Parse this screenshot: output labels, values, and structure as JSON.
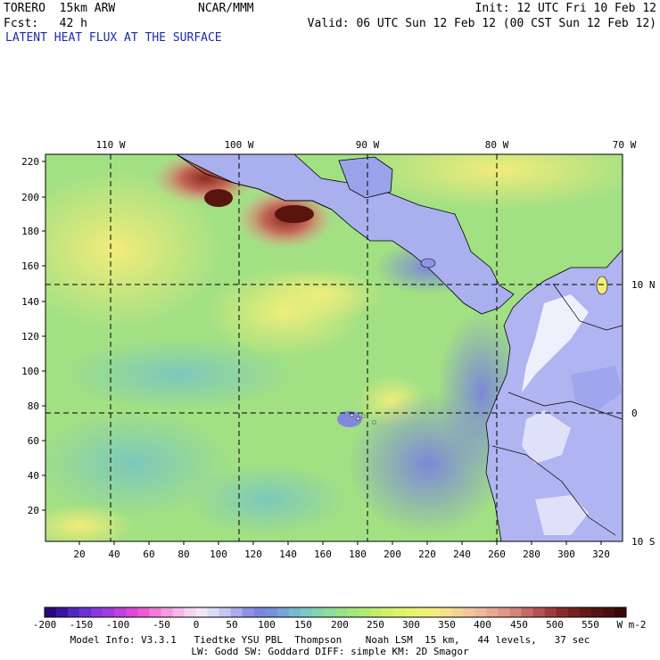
{
  "header": {
    "model": "TORERO  15km ARW",
    "org": "NCAR/MMM",
    "init": "Init: 12 UTC Fri 10 Feb 12",
    "fcst": "Fcst:   42 h",
    "valid": "Valid: 06 UTC Sun 12 Feb 12 (00 CST Sun 12 Feb 12)",
    "field_title": "LATENT HEAT FLUX AT THE SURFACE"
  },
  "map": {
    "top_lon_labels": [
      "110 W",
      "100 W",
      "90 W",
      "80 W",
      "70 W"
    ],
    "right_lat_labels": [
      "10 N",
      "0",
      "10 S"
    ],
    "left_y_ticks": [
      "220",
      "200",
      "180",
      "160",
      "140",
      "120",
      "100",
      "80",
      "60",
      "40",
      "20"
    ],
    "bottom_x_ticks": [
      "20",
      "40",
      "60",
      "80",
      "100",
      "120",
      "140",
      "160",
      "180",
      "200",
      "220",
      "240",
      "260",
      "280",
      "300",
      "320"
    ]
  },
  "colorbar": {
    "labels": [
      "-200",
      "-150",
      "-100",
      "-50",
      "0",
      "50",
      "100",
      "150",
      "200",
      "250",
      "300",
      "350",
      "400",
      "450",
      "500",
      "550"
    ],
    "units": "W m-2",
    "colors": [
      "#2a0a7a",
      "#3a14a0",
      "#5028c0",
      "#6c30d8",
      "#8a38e0",
      "#a03ce0",
      "#c040e0",
      "#dc48d8",
      "#ee5ad2",
      "#f27ad8",
      "#f49ae0",
      "#f6b8ea",
      "#f4d4f0",
      "#f0e6f6",
      "#dadcf6",
      "#c4c6f2",
      "#a8acee",
      "#8c92e8",
      "#7c86e2",
      "#7490dc",
      "#76a4d6",
      "#78b8d0",
      "#7cc8c4",
      "#84d4b0",
      "#8cdc9c",
      "#96e28a",
      "#a2e67c",
      "#b0ea72",
      "#c0ee6c",
      "#d0f06a",
      "#dcf26c",
      "#e6f270",
      "#eef078",
      "#f4ea80",
      "#f6e08a",
      "#f4d494",
      "#f2c69a",
      "#eeb89c",
      "#e8a894",
      "#e0968a",
      "#d4827a",
      "#c66a66",
      "#b45252",
      "#a03c3c",
      "#8a2a2a",
      "#762020",
      "#641a16",
      "#561410",
      "#4a0f0a",
      "#3c0a06"
    ]
  },
  "footer": {
    "line1": "Model Info: V3.3.1   Tiedtke YSU PBL  Thompson    Noah LSM  15 km,   44 levels,   37 sec",
    "line2": "LW: Godd SW: Goddard DIFF: simple KM: 2D Smagor"
  }
}
